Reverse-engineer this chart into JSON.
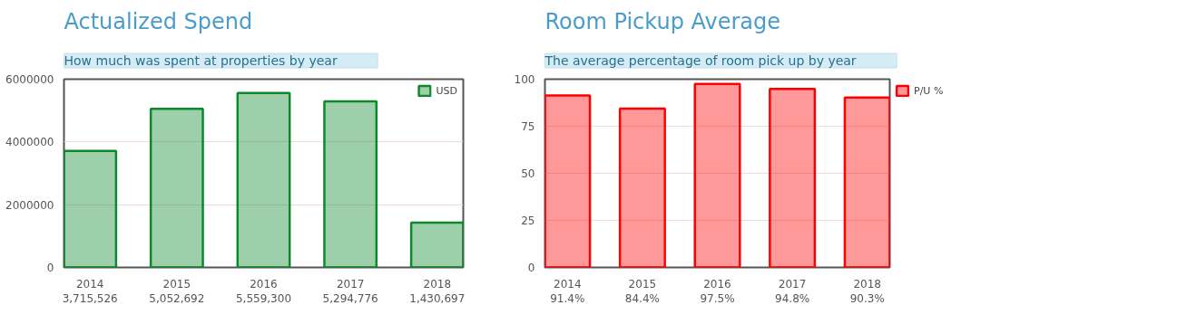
{
  "chart_data": [
    {
      "type": "bar",
      "title": "Actualized Spend",
      "subtitle": "How much was spent at properties by year",
      "categories": [
        "2014",
        "2015",
        "2016",
        "2017",
        "2018"
      ],
      "series": [
        {
          "name": "USD",
          "color": "#0a8a2a",
          "values": [
            3715526,
            5052692,
            5559300,
            5294776,
            1430697
          ]
        }
      ],
      "value_labels": [
        "3,715,526",
        "5,052,692",
        "5,559,300",
        "5,294,776",
        "1,430,697"
      ],
      "ylim": [
        0,
        6000000
      ],
      "yticks": [
        0,
        2000000,
        4000000,
        6000000
      ],
      "grid": "y",
      "legend": "top right"
    },
    {
      "type": "bar",
      "title": "Room Pickup Average",
      "subtitle": "The average percentage of room pick up by year",
      "categories": [
        "2014",
        "2015",
        "2016",
        "2017",
        "2018"
      ],
      "series": [
        {
          "name": "P/U %",
          "color": "#ff0000",
          "values": [
            91.4,
            84.4,
            97.5,
            94.8,
            90.3
          ]
        }
      ],
      "value_labels": [
        "91.4%",
        "84.4%",
        "97.5%",
        "94.8%",
        "90.3%"
      ],
      "ylim": [
        0,
        100
      ],
      "yticks": [
        0,
        25,
        50,
        75,
        100
      ],
      "grid": "y",
      "legend": "right"
    }
  ]
}
